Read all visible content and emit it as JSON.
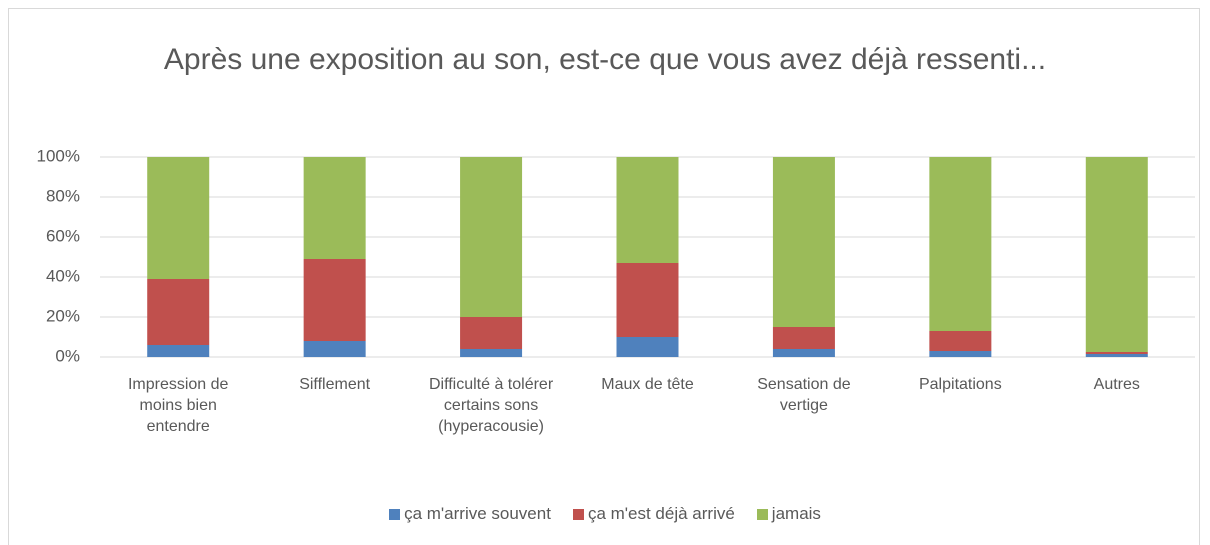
{
  "chart_data": {
    "type": "stacked_bar_percent",
    "title": "Après une exposition au son, est-ce que vous avez déjà ressenti...",
    "categories": [
      "Impression de moins bien entendre",
      "Sifflement",
      "Difficulté à tolérer certains sons (hyperacousie)",
      "Maux de tête",
      "Sensation de vertige",
      "Palpitations",
      "Autres"
    ],
    "series": [
      {
        "name": "ça m'arrive souvent",
        "color": "#4f81bd",
        "values": [
          6,
          8,
          4,
          10,
          4,
          3,
          1.5
        ]
      },
      {
        "name": "ça m'est déjà arrivé",
        "color": "#c0504d",
        "values": [
          33,
          41,
          16,
          37,
          11,
          10,
          1
        ]
      },
      {
        "name": "jamais",
        "color": "#9bbb59",
        "values": [
          61,
          51,
          80,
          53,
          85,
          87,
          97.5
        ]
      }
    ],
    "ylim": [
      0,
      100
    ],
    "yticks": [
      {
        "value": 0,
        "label": "0%"
      },
      {
        "value": 20,
        "label": "20%"
      },
      {
        "value": 40,
        "label": "40%"
      },
      {
        "value": 60,
        "label": "60%"
      },
      {
        "value": 80,
        "label": "80%"
      },
      {
        "value": 100,
        "label": "100%"
      }
    ],
    "grid": true,
    "legend": "bottom"
  }
}
